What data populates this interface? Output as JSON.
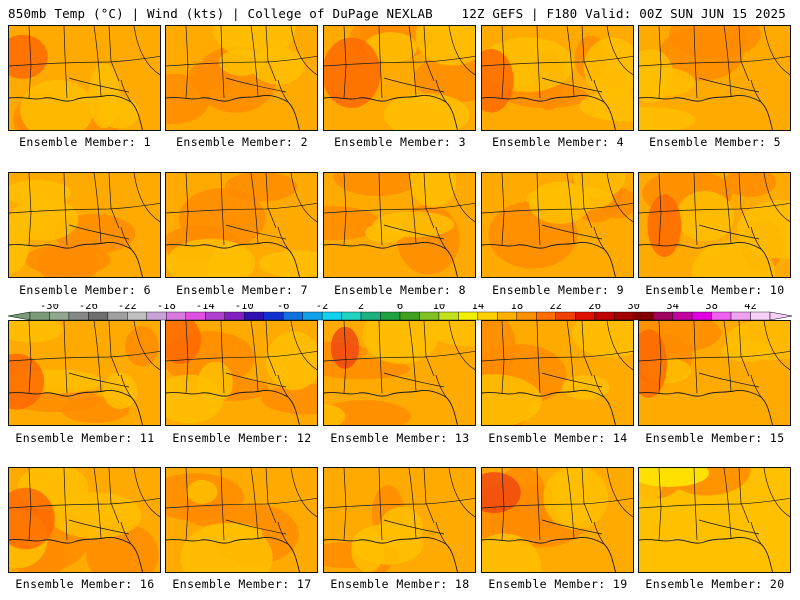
{
  "header": {
    "left": "850mb Temp (°C) | Wind (kts) | College of DuPage NEXLAB",
    "right": "12Z GEFS | F180 Valid: 00Z SUN JUN 15 2025"
  },
  "colorbar": {
    "tick_labels": [
      "-30",
      "-26",
      "-22",
      "-18",
      "-14",
      "-10",
      "-6",
      "-2",
      "2",
      "6",
      "10",
      "14",
      "18",
      "22",
      "26",
      "30",
      "34",
      "38",
      "42"
    ],
    "colors": [
      "#7a9a7a",
      "#8fa88f",
      "#888888",
      "#6e6e6e",
      "#a0a0a0",
      "#c0c0c0",
      "#c9a2d9",
      "#d87ae0",
      "#e050e0",
      "#b040d0",
      "#8020c0",
      "#3010b0",
      "#1030d0",
      "#1070e0",
      "#10a0e8",
      "#10d0f0",
      "#20d0c0",
      "#20b080",
      "#20a040",
      "#40a020",
      "#80c020",
      "#c0e020",
      "#f0f000",
      "#ffd000",
      "#ffb000",
      "#ff9000",
      "#ff7000",
      "#f04000",
      "#e01000",
      "#c00000",
      "#a00000",
      "#800000",
      "#a00060",
      "#c000a0",
      "#e000e0",
      "#f060f0",
      "#f0a0f0",
      "#f8d0f8"
    ]
  },
  "panel_colors": {
    "base": "#ffaa00",
    "warm": "#ff8c00",
    "hot": "#ff6a00",
    "hotter": "#f04a10",
    "cool": "#ffc000",
    "yellow": "#ffe000",
    "line": "#1a1a1a"
  },
  "members": [
    {
      "label": "Ensemble Member: 1"
    },
    {
      "label": "Ensemble Member: 2"
    },
    {
      "label": "Ensemble Member: 3"
    },
    {
      "label": "Ensemble Member: 4"
    },
    {
      "label": "Ensemble Member: 5"
    },
    {
      "label": "Ensemble Member: 6"
    },
    {
      "label": "Ensemble Member: 7"
    },
    {
      "label": "Ensemble Member: 8"
    },
    {
      "label": "Ensemble Member: 9"
    },
    {
      "label": "Ensemble Member: 10"
    },
    {
      "label": "Ensemble Member: 11"
    },
    {
      "label": "Ensemble Member: 12"
    },
    {
      "label": "Ensemble Member: 13"
    },
    {
      "label": "Ensemble Member: 14"
    },
    {
      "label": "Ensemble Member: 15"
    },
    {
      "label": "Ensemble Member: 16"
    },
    {
      "label": "Ensemble Member: 17"
    },
    {
      "label": "Ensemble Member: 18"
    },
    {
      "label": "Ensemble Member: 19"
    },
    {
      "label": "Ensemble Member: 20"
    }
  ]
}
